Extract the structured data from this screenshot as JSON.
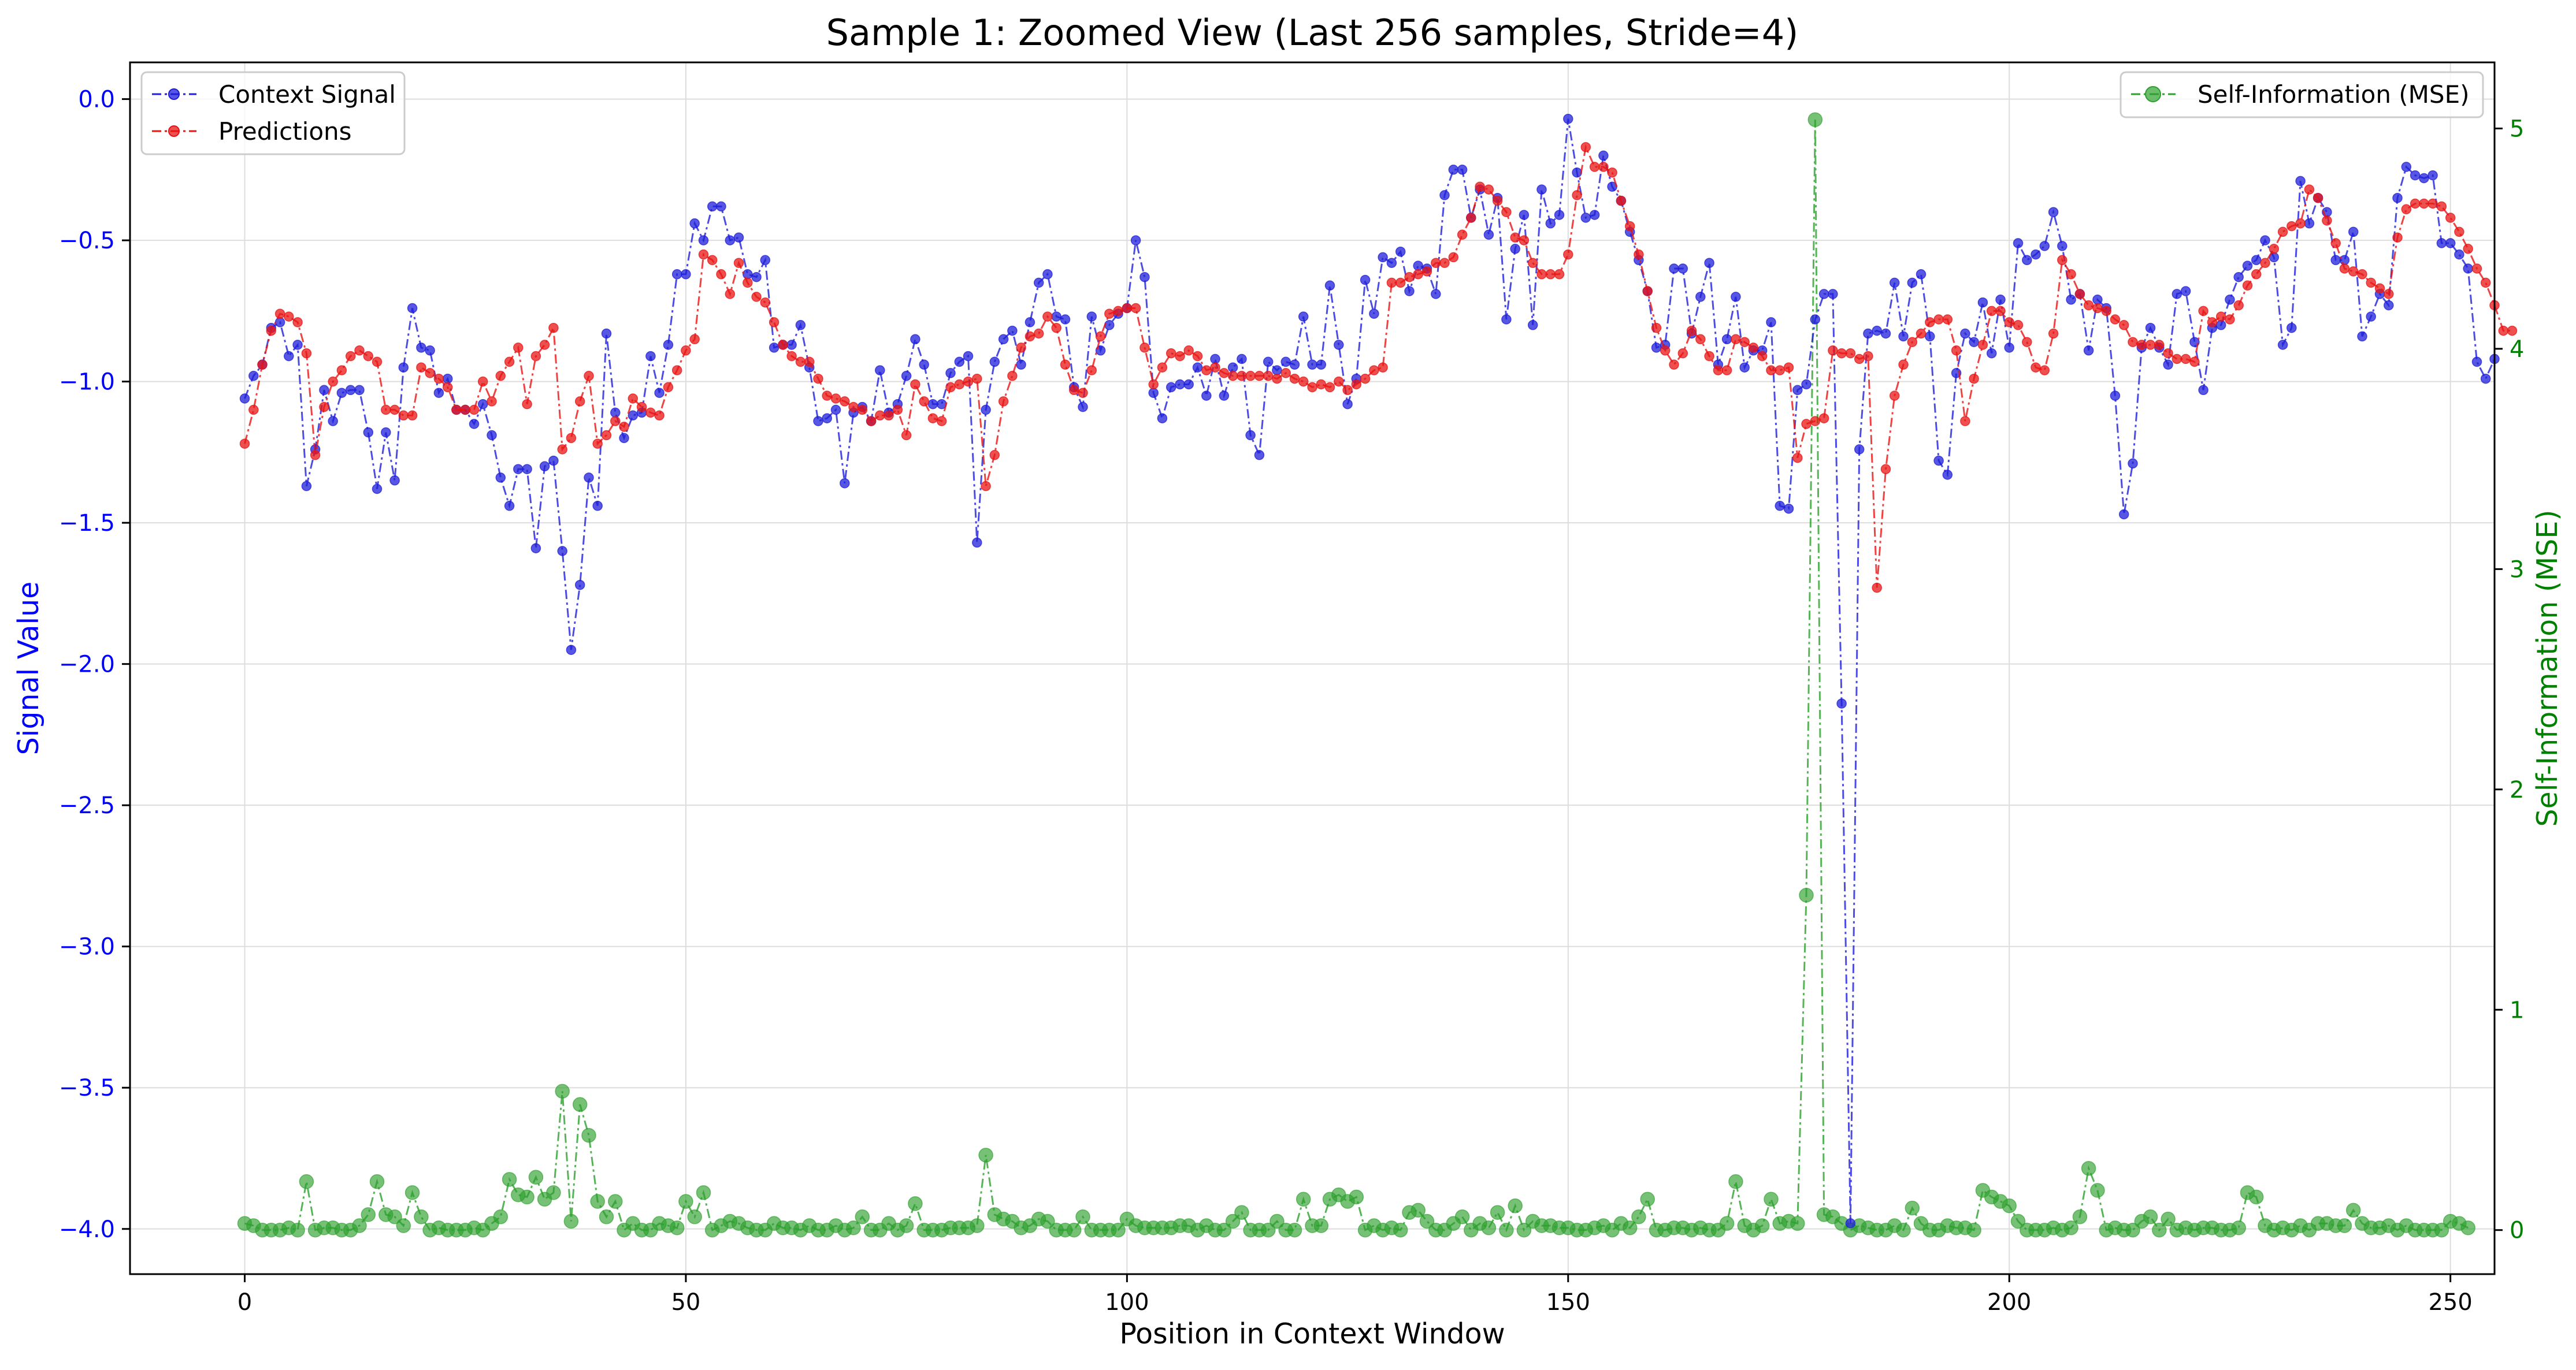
{
  "chart_data": {
    "type": "line",
    "title": "Sample 1: Zoomed View (Last 256 samples, Stride=4)",
    "xlabel": "Position in Context Window",
    "ylabel_left": "Signal Value",
    "ylabel_right": "Self-Information (MSE)",
    "xlim": [
      -13,
      255
    ],
    "ylim_left": [
      -4.16,
      0.13
    ],
    "ylim_right": [
      -0.2,
      5.3
    ],
    "grid": true,
    "x_ticks": [
      0,
      50,
      100,
      150,
      200,
      250
    ],
    "y_ticks_left": [
      0.0,
      -0.5,
      -1.0,
      -1.5,
      -2.0,
      -2.5,
      -3.0,
      -3.5,
      -4.0
    ],
    "y_ticks_right": [
      0,
      1,
      2,
      3,
      4,
      5
    ],
    "x_tick_labels": [
      "0",
      "50",
      "100",
      "150",
      "200",
      "250"
    ],
    "y_tick_labels_left": [
      "0.0",
      "−0.5",
      "−1.0",
      "−1.5",
      "−2.0",
      "−2.5",
      "−3.0",
      "−3.5",
      "−4.0"
    ],
    "y_tick_labels_right": [
      "0",
      "1",
      "2",
      "3",
      "4",
      "5"
    ],
    "legend_left_placement": "upper-left",
    "legend_right_placement": "upper-right",
    "series": [
      {
        "name": "Context Signal",
        "axis": "left",
        "color": "#1f1fd9",
        "x_start": 0,
        "values": [
          -1.06,
          -0.98,
          -0.94,
          -0.81,
          -0.79,
          -0.91,
          -0.87,
          -1.37,
          -1.24,
          -1.03,
          -1.14,
          -1.04,
          -1.03,
          -1.03,
          -1.18,
          -1.38,
          -1.18,
          -1.35,
          -0.95,
          -0.74,
          -0.88,
          -0.89,
          -1.04,
          -0.99,
          -1.1,
          -1.1,
          -1.15,
          -1.08,
          -1.19,
          -1.34,
          -1.44,
          -1.31,
          -1.31,
          -1.59,
          -1.3,
          -1.28,
          -1.6,
          -1.95,
          -1.72,
          -1.34,
          -1.44,
          -0.83,
          -1.11,
          -1.2,
          -1.12,
          -1.11,
          -0.91,
          -1.04,
          -0.87,
          -0.62,
          -0.62,
          -0.44,
          -0.5,
          -0.38,
          -0.38,
          -0.5,
          -0.49,
          -0.62,
          -0.63,
          -0.57,
          -0.88,
          -0.87,
          -0.87,
          -0.8,
          -0.95,
          -1.14,
          -1.13,
          -1.1,
          -1.36,
          -1.11,
          -1.09,
          -1.14,
          -0.96,
          -1.11,
          -1.08,
          -0.98,
          -0.85,
          -0.94,
          -1.08,
          -1.08,
          -0.97,
          -0.93,
          -0.91,
          -1.57,
          -1.1,
          -0.93,
          -0.85,
          -0.82,
          -0.94,
          -0.79,
          -0.65,
          -0.62,
          -0.77,
          -0.78,
          -1.02,
          -1.09,
          -0.77,
          -0.89,
          -0.8,
          -0.76,
          -0.74,
          -0.5,
          -0.63,
          -1.04,
          -1.13,
          -1.02,
          -1.01,
          -1.01,
          -0.95,
          -1.05,
          -0.92,
          -1.05,
          -0.95,
          -0.92,
          -1.19,
          -1.26,
          -0.93,
          -0.96,
          -0.93,
          -0.94,
          -0.77,
          -0.94,
          -0.94,
          -0.66,
          -0.87,
          -1.08,
          -0.99,
          -0.64,
          -0.76,
          -0.56,
          -0.58,
          -0.54,
          -0.68,
          -0.59,
          -0.6,
          -0.69,
          -0.34,
          -0.25,
          -0.25,
          -0.42,
          -0.32,
          -0.48,
          -0.35,
          -0.78,
          -0.53,
          -0.41,
          -0.8,
          -0.32,
          -0.44,
          -0.41,
          -0.07,
          -0.26,
          -0.42,
          -0.41,
          -0.2,
          -0.31,
          -0.36,
          -0.47,
          -0.57,
          -0.68,
          -0.88,
          -0.87,
          -0.6,
          -0.6,
          -0.83,
          -0.7,
          -0.58,
          -0.94,
          -0.85,
          -0.7,
          -0.95,
          -0.89,
          -0.89,
          -0.79,
          -1.44,
          -1.45,
          -1.03,
          -1.01,
          -0.78,
          -0.69,
          -0.69,
          -2.14,
          -3.98,
          -1.24,
          -0.83,
          -0.82,
          -0.83,
          -0.65,
          -0.84,
          -0.65,
          -0.62,
          -0.84,
          -1.28,
          -1.33,
          -0.97,
          -0.83,
          -0.86,
          -0.72,
          -0.9,
          -0.71,
          -0.88,
          -0.51,
          -0.57,
          -0.55,
          -0.52,
          -0.4,
          -0.52,
          -0.71,
          -0.69,
          -0.89,
          -0.71,
          -0.74,
          -1.05,
          -1.47,
          -1.29,
          -0.88,
          -0.81,
          -0.88,
          -0.94,
          -0.69,
          -0.68,
          -0.86,
          -1.03,
          -0.81,
          -0.8,
          -0.71,
          -0.63,
          -0.59,
          -0.57,
          -0.5,
          -0.56,
          -0.87,
          -0.81,
          -0.29,
          -0.44,
          -0.35,
          -0.4,
          -0.57,
          -0.57,
          -0.47,
          -0.84,
          -0.77,
          -0.69,
          -0.73,
          -0.35,
          -0.24,
          -0.27,
          -0.28,
          -0.27,
          -0.51,
          -0.51,
          -0.55,
          -0.6,
          -0.93,
          -0.99,
          -0.92
        ]
      },
      {
        "name": "Predictions",
        "axis": "left",
        "color": "#e81414",
        "x_start": 0,
        "values": [
          -1.22,
          -1.1,
          -0.94,
          -0.82,
          -0.76,
          -0.77,
          -0.79,
          -0.9,
          -1.26,
          -1.09,
          -1.0,
          -0.96,
          -0.91,
          -0.89,
          -0.91,
          -0.93,
          -1.1,
          -1.1,
          -1.12,
          -1.12,
          -0.95,
          -0.97,
          -0.99,
          -1.02,
          -1.1,
          -1.1,
          -1.1,
          -1.0,
          -1.07,
          -0.98,
          -0.93,
          -0.88,
          -1.08,
          -0.91,
          -0.87,
          -0.81,
          -1.24,
          -1.2,
          -1.07,
          -0.98,
          -1.22,
          -1.19,
          -1.14,
          -1.16,
          -1.06,
          -1.09,
          -1.11,
          -1.12,
          -1.02,
          -0.96,
          -0.89,
          -0.85,
          -0.55,
          -0.57,
          -0.62,
          -0.69,
          -0.58,
          -0.65,
          -0.7,
          -0.72,
          -0.79,
          -0.87,
          -0.91,
          -0.93,
          -0.93,
          -0.99,
          -1.05,
          -1.06,
          -1.07,
          -1.09,
          -1.1,
          -1.14,
          -1.12,
          -1.12,
          -1.1,
          -1.19,
          -1.01,
          -1.07,
          -1.13,
          -1.14,
          -1.02,
          -1.01,
          -1.0,
          -0.99,
          -1.37,
          -1.26,
          -1.07,
          -0.98,
          -0.88,
          -0.84,
          -0.83,
          -0.77,
          -0.81,
          -0.94,
          -1.03,
          -1.04,
          -0.96,
          -0.84,
          -0.76,
          -0.75,
          -0.74,
          -0.74,
          -0.88,
          -1.01,
          -0.95,
          -0.9,
          -0.91,
          -0.89,
          -0.91,
          -0.96,
          -0.95,
          -0.97,
          -0.98,
          -0.98,
          -0.98,
          -0.98,
          -0.98,
          -0.99,
          -0.97,
          -0.99,
          -1.0,
          -1.02,
          -1.01,
          -1.02,
          -1.0,
          -1.03,
          -1.01,
          -0.99,
          -0.96,
          -0.95,
          -0.65,
          -0.65,
          -0.63,
          -0.62,
          -0.61,
          -0.58,
          -0.58,
          -0.56,
          -0.48,
          -0.42,
          -0.31,
          -0.32,
          -0.36,
          -0.4,
          -0.49,
          -0.5,
          -0.58,
          -0.62,
          -0.62,
          -0.62,
          -0.55,
          -0.34,
          -0.17,
          -0.24,
          -0.24,
          -0.26,
          -0.36,
          -0.45,
          -0.55,
          -0.68,
          -0.81,
          -0.89,
          -0.94,
          -0.9,
          -0.82,
          -0.85,
          -0.91,
          -0.96,
          -0.96,
          -0.85,
          -0.86,
          -0.88,
          -0.91,
          -0.96,
          -0.96,
          -0.95,
          -1.27,
          -1.15,
          -1.14,
          -1.13,
          -0.89,
          -0.9,
          -0.9,
          -0.92,
          -0.91,
          -1.73,
          -1.31,
          -1.05,
          -0.94,
          -0.86,
          -0.83,
          -0.79,
          -0.78,
          -0.78,
          -0.89,
          -1.14,
          -0.99,
          -0.87,
          -0.75,
          -0.75,
          -0.79,
          -0.8,
          -0.86,
          -0.95,
          -0.96,
          -0.83,
          -0.57,
          -0.62,
          -0.69,
          -0.73,
          -0.74,
          -0.75,
          -0.78,
          -0.8,
          -0.86,
          -0.87,
          -0.87,
          -0.87,
          -0.9,
          -0.92,
          -0.92,
          -0.93,
          -0.75,
          -0.79,
          -0.77,
          -0.78,
          -0.73,
          -0.66,
          -0.62,
          -0.58,
          -0.53,
          -0.47,
          -0.45,
          -0.44,
          -0.32,
          -0.35,
          -0.43,
          -0.51,
          -0.6,
          -0.61,
          -0.62,
          -0.65,
          -0.67,
          -0.69,
          -0.49,
          -0.39,
          -0.37,
          -0.37,
          -0.37,
          -0.38,
          -0.42,
          -0.47,
          -0.53,
          -0.6,
          -0.65,
          -0.73,
          -0.82,
          -0.82
        ]
      },
      {
        "name": "Self-Information (MSE)",
        "axis": "right",
        "color": "#2ca02c",
        "x_start": 0,
        "values": [
          0.03,
          0.02,
          0.0,
          0.0,
          0.0,
          0.01,
          0.0,
          0.22,
          0.0,
          0.01,
          0.01,
          0.0,
          0.0,
          0.02,
          0.07,
          0.22,
          0.07,
          0.06,
          0.02,
          0.17,
          0.06,
          0.0,
          0.01,
          0.0,
          0.0,
          0.0,
          0.01,
          0.0,
          0.03,
          0.06,
          0.23,
          0.16,
          0.15,
          0.24,
          0.14,
          0.17,
          0.63,
          0.04,
          0.57,
          0.43,
          0.13,
          0.06,
          0.13,
          0.0,
          0.03,
          0.0,
          0.0,
          0.03,
          0.02,
          0.01,
          0.13,
          0.06,
          0.17,
          0.0,
          0.02,
          0.04,
          0.03,
          0.01,
          0.0,
          0.0,
          0.03,
          0.01,
          0.01,
          0.0,
          0.02,
          0.0,
          0.0,
          0.02,
          0.0,
          0.01,
          0.06,
          0.0,
          0.0,
          0.03,
          0.0,
          0.02,
          0.12,
          0.0,
          0.0,
          0.0,
          0.01,
          0.01,
          0.01,
          0.02,
          0.34,
          0.07,
          0.05,
          0.04,
          0.01,
          0.02,
          0.05,
          0.04,
          0.0,
          0.0,
          0.0,
          0.06,
          0.0,
          0.0,
          0.0,
          0.0,
          0.05,
          0.02,
          0.01,
          0.01,
          0.01,
          0.01,
          0.02,
          0.02,
          0.0,
          0.02,
          0.0,
          0.0,
          0.04,
          0.08,
          0.0,
          0.0,
          0.0,
          0.04,
          0.0,
          0.0,
          0.14,
          0.02,
          0.02,
          0.14,
          0.16,
          0.13,
          0.15,
          0.0,
          0.02,
          0.0,
          0.01,
          0.0,
          0.08,
          0.09,
          0.04,
          0.0,
          0.0,
          0.03,
          0.06,
          0.0,
          0.03,
          0.01,
          0.08,
          0.0,
          0.11,
          0.0,
          0.04,
          0.02,
          0.02,
          0.01,
          0.01,
          0.0,
          0.0,
          0.01,
          0.02,
          0.0,
          0.03,
          0.01,
          0.06,
          0.14,
          0.0,
          0.0,
          0.01,
          0.01,
          0.0,
          0.01,
          0.0,
          0.0,
          0.03,
          0.22,
          0.02,
          0.0,
          0.02,
          0.14,
          0.03,
          0.04,
          0.03,
          1.52,
          5.04,
          0.07,
          0.06,
          0.03,
          0.0,
          0.02,
          0.01,
          0.0,
          0.0,
          0.02,
          0.0,
          0.1,
          0.03,
          0.0,
          0.0,
          0.02,
          0.01,
          0.01,
          0.0,
          0.18,
          0.15,
          0.13,
          0.11,
          0.04,
          0.0,
          0.0,
          0.0,
          0.01,
          0.0,
          0.01,
          0.06,
          0.28,
          0.18,
          0.0,
          0.01,
          0.0,
          0.0,
          0.04,
          0.06,
          0.0,
          0.05,
          0.0,
          0.01,
          0.0,
          0.01,
          0.01,
          0.0,
          0.0,
          0.01,
          0.17,
          0.15,
          0.02,
          0.0,
          0.01,
          0.0,
          0.02,
          0.0,
          0.03,
          0.03,
          0.02,
          0.02,
          0.09,
          0.03,
          0.01,
          0.01,
          0.02,
          0.0,
          0.02,
          0.0,
          0.0,
          0.0,
          0.0,
          0.04,
          0.03,
          0.01
        ]
      }
    ]
  }
}
